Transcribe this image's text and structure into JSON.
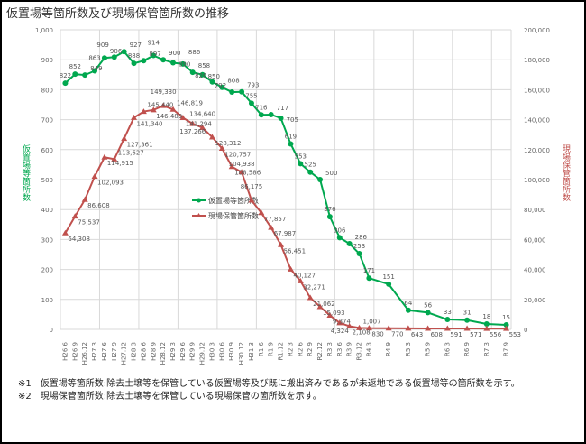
{
  "title": "仮置場等箇所数及び現場保管箇所数の推移",
  "notes": [
    "※1　仮置場等箇所数:除去土壌等を保管している仮置場等及び既に搬出済みであるが未返地である仮置場等の箇所数を示す。",
    "※2　現場保管箇所数:除去土壌等を保管している現場保管の箇所数を示す。"
  ],
  "chart_data": {
    "type": "line",
    "title": "仮置場等箇所数及び現場保管箇所数の推移",
    "categories": [
      "H26.6",
      "H26.9",
      "H26.12",
      "H27.3",
      "H27.6",
      "H27.9",
      "H27.12",
      "H28.3",
      "H28.6",
      "H28.9",
      "H28.12",
      "H29.3",
      "H29.6",
      "H29.9",
      "H29.12",
      "H30.3",
      "H30.6",
      "H30.9",
      "H30.12",
      "H31.3",
      "R1.6",
      "R1.9",
      "R1.12",
      "R2.3",
      "R2.6",
      "R2.9",
      "R2.12",
      "R3.3",
      "R3.6",
      "R3.9",
      "R3.12",
      "R4.3",
      "R4.9",
      "R5.3",
      "R5.9",
      "R6.3",
      "R6.9",
      "R7.3",
      "R7.9"
    ],
    "ylabel_left": "仮置場等箇所数",
    "ylabel_right": "現場保管箇所数",
    "ylim_left": [
      0,
      1000
    ],
    "ylim_right": [
      0,
      200000
    ],
    "yticks_left": [
      "0",
      "100",
      "200",
      "300",
      "400",
      "500",
      "600",
      "700",
      "800",
      "900",
      "1,000"
    ],
    "yticks_right": [
      "0",
      "20,000",
      "40,000",
      "60,000",
      "80,000",
      "100,000",
      "120,000",
      "140,000",
      "160,000",
      "180,000",
      "200,000"
    ],
    "grid": true,
    "legend": "center",
    "series": [
      {
        "name": "仮置場等箇所数",
        "axis": "left",
        "color": "#00a84f",
        "marker": "circle",
        "values": [
          822,
          852,
          849,
          863,
          906,
          909,
          927,
          888,
          897,
          914,
          900,
          890,
          886,
          858,
          850,
          826,
          808,
          792,
          793,
          755,
          716,
          717,
          705,
          619,
          553,
          525,
          500,
          376,
          306,
          286,
          253,
          171,
          151,
          64,
          56,
          33,
          31,
          18,
          15
        ]
      },
      {
        "name": "現場保管箇所数",
        "axis": "right",
        "color": "#c0504d",
        "marker": "triangle",
        "values": [
          64308,
          75537,
          86608,
          102093,
          114915,
          113627,
          127361,
          141340,
          145440,
          146489,
          149330,
          146819,
          141294,
          137266,
          134640,
          128312,
          120757,
          108586,
          104938,
          86175,
          77857,
          67987,
          56451,
          40127,
          32271,
          21062,
          15093,
          9374,
          4324,
          2108,
          1007,
          830,
          770,
          643,
          608,
          591,
          571,
          556,
          553
        ]
      }
    ]
  }
}
